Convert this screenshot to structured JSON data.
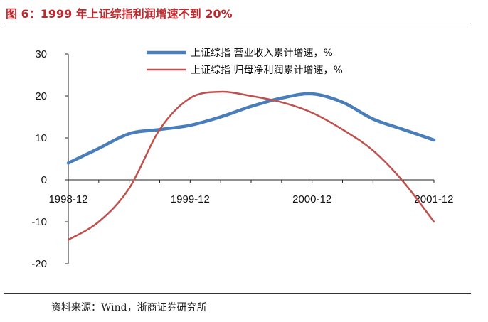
{
  "figure": {
    "title": "图 6：1999 年上证综指利润增速不到 20%",
    "source": "资料来源：Wind，浙商证券研究所"
  },
  "chart_data": {
    "type": "line",
    "x": [
      "1998-12",
      "1999-03",
      "1999-06",
      "1999-09",
      "1999-12",
      "2000-03",
      "2000-06",
      "2000-09",
      "2000-12",
      "2001-03",
      "2001-06",
      "2001-09",
      "2001-12"
    ],
    "xticks": [
      "1998-12",
      "1999-12",
      "2000-12",
      "2001-12"
    ],
    "yticks": [
      "30",
      "20",
      "10",
      "0",
      "-10",
      "-20"
    ],
    "ylim": [
      -20,
      30
    ],
    "series": [
      {
        "name": "上证综指 营业收入累计增速，%",
        "color": "#4a7ebb",
        "values": [
          4,
          7.5,
          11,
          12,
          13,
          15,
          17.5,
          19.5,
          20.5,
          18.5,
          14.5,
          12,
          9.5
        ]
      },
      {
        "name": "上证综指 归母净利润累计增速，%",
        "color": "#c0504d",
        "values": [
          -14.3,
          -10,
          -2,
          12,
          19.5,
          21,
          20,
          18.5,
          16,
          12,
          7,
          -0.5,
          -10
        ]
      }
    ],
    "legend": "top"
  }
}
